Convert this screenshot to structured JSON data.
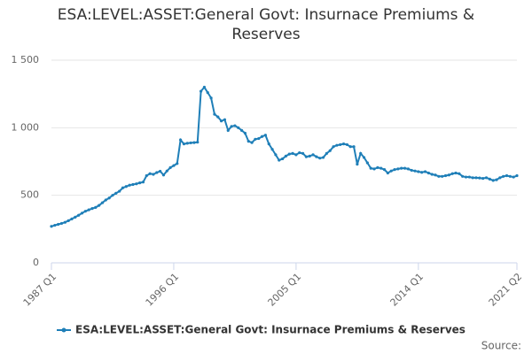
{
  "chart_data": {
    "type": "line",
    "title": "ESA:LEVEL:ASSET:General Govt: Insurnace Premiums & Reserves",
    "source_label": "Source:",
    "categories": [
      "1987 Q1",
      null,
      null,
      null,
      null,
      null,
      null,
      null,
      null,
      null,
      null,
      null,
      null,
      null,
      null,
      null,
      null,
      null,
      null,
      null,
      null,
      null,
      null,
      null,
      null,
      null,
      null,
      null,
      null,
      null,
      null,
      null,
      null,
      null,
      null,
      null,
      "1996 Q1",
      null,
      null,
      null,
      null,
      null,
      null,
      null,
      null,
      null,
      null,
      null,
      null,
      null,
      null,
      null,
      null,
      null,
      null,
      null,
      null,
      null,
      null,
      null,
      null,
      null,
      null,
      null,
      null,
      null,
      null,
      null,
      null,
      null,
      null,
      null,
      "2005 Q1",
      null,
      null,
      null,
      null,
      null,
      null,
      null,
      null,
      null,
      null,
      null,
      null,
      null,
      null,
      null,
      null,
      null,
      null,
      null,
      null,
      null,
      null,
      null,
      null,
      null,
      null,
      null,
      null,
      null,
      null,
      null,
      null,
      null,
      null,
      null,
      "2014 Q1",
      null,
      null,
      null,
      null,
      null,
      null,
      null,
      null,
      null,
      null,
      null,
      null,
      null,
      null,
      null,
      null,
      null,
      null,
      null,
      null,
      null,
      null,
      null,
      null,
      null,
      null,
      null,
      null,
      "2021 Q2"
    ],
    "series": [
      {
        "name": "ESA:LEVEL:ASSET:General Govt: Insurnace Premiums & Reserves",
        "color": "#1f7fb8",
        "values": [
          270,
          278,
          285,
          292,
          300,
          312,
          325,
          338,
          352,
          368,
          382,
          392,
          402,
          410,
          425,
          445,
          465,
          480,
          500,
          515,
          530,
          555,
          565,
          575,
          580,
          585,
          592,
          598,
          645,
          660,
          655,
          668,
          678,
          650,
          680,
          705,
          720,
          735,
          910,
          880,
          885,
          888,
          890,
          893,
          1270,
          1300,
          1260,
          1220,
          1100,
          1080,
          1050,
          1060,
          980,
          1010,
          1015,
          1000,
          980,
          960,
          900,
          890,
          915,
          920,
          935,
          945,
          880,
          840,
          800,
          760,
          770,
          790,
          805,
          810,
          800,
          815,
          810,
          785,
          790,
          800,
          785,
          775,
          780,
          810,
          830,
          860,
          870,
          875,
          880,
          875,
          860,
          860,
          730,
          810,
          780,
          740,
          700,
          695,
          705,
          700,
          690,
          665,
          680,
          690,
          695,
          700,
          700,
          695,
          685,
          680,
          675,
          670,
          675,
          665,
          655,
          650,
          640,
          640,
          645,
          650,
          660,
          665,
          660,
          640,
          635,
          635,
          630,
          630,
          628,
          625,
          630,
          620,
          610,
          615,
          630,
          640,
          645,
          640,
          635,
          645
        ]
      }
    ],
    "ylim": [
      0,
      1500
    ],
    "yticks": [
      0,
      500,
      {
        "value": 1000,
        "label": "1 000"
      },
      {
        "value": 1500,
        "label": "1 500"
      }
    ],
    "grid": true
  }
}
